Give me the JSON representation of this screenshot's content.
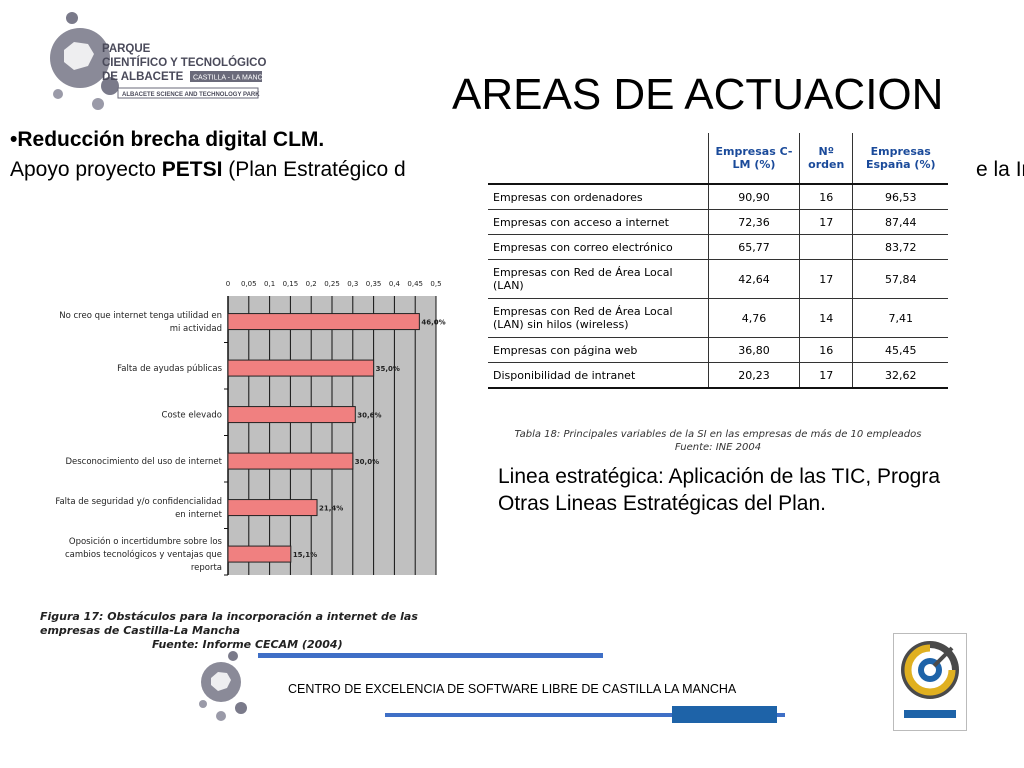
{
  "logo": {
    "line1": "PARQUE",
    "line2": "CIENTÍFICO Y TECNOLÓGICO",
    "line3": "DE ALBACETE",
    "region": "CASTILLA - LA MANCHA",
    "subtitle": "ALBACETE SCIENCE AND TECHNOLOGY PARK"
  },
  "title": "AREAS DE ACTUACION",
  "bullet": "•Reducción brecha digital CLM.",
  "support": {
    "prefix": "Apoyo proyecto ",
    "bold": "PETSI",
    "rest": " (Plan Estratégico d",
    "tail": "e la In"
  },
  "chart_data": {
    "type": "bar",
    "orientation": "horizontal",
    "categories": [
      "No creo que internet tenga utilidad en mi actividad",
      "Falta de ayudas públicas",
      "Coste elevado",
      "Desconocimiento del uso de internet",
      "Falta de seguridad y/o confidencialidad en internet",
      "Oposición o incertidumbre sobre los cambios tecnológicos y ventajas que reporta"
    ],
    "values": [
      0.46,
      0.35,
      0.306,
      0.3,
      0.214,
      0.151
    ],
    "data_labels": [
      "46,0%",
      "35,0%",
      "30,6%",
      "30,0%",
      "21,4%",
      "15,1%"
    ],
    "ticks": [
      "0",
      "0,05",
      "0,1",
      "0,15",
      "0,2",
      "0,25",
      "0,3",
      "0,35",
      "0,4",
      "0,45",
      "0,5"
    ],
    "xlim": [
      0,
      0.5
    ],
    "bar_color": "#f08080",
    "plot_background": "#c0c0c0",
    "grid": true
  },
  "chart_caption": {
    "line1": "Figura 17: Obstáculos para la incorporación a internet de las empresas de Castilla-La Mancha",
    "line2": "Fuente: Informe CECAM (2004)"
  },
  "table": {
    "headers": [
      "",
      "Empresas C-LM (%)",
      "Nº orden",
      "Empresas España (%)"
    ],
    "rows": [
      [
        "Empresas con ordenadores",
        "90,90",
        "16",
        "96,53"
      ],
      [
        "Empresas con acceso a internet",
        "72,36",
        "17",
        "87,44"
      ],
      [
        "Empresas con correo electrónico",
        "65,77",
        "",
        "83,72"
      ],
      [
        "Empresas con Red de Área Local (LAN)",
        "42,64",
        "17",
        "57,84"
      ],
      [
        "Empresas con Red de Área Local (LAN) sin hilos (wireless)",
        "4,76",
        "14",
        "7,41"
      ],
      [
        "Empresas con página web",
        "36,80",
        "16",
        "45,45"
      ],
      [
        "Disponibilidad de intranet",
        "20,23",
        "17",
        "32,62"
      ]
    ],
    "caption_line1": "Tabla 18: Principales variables de la SI en las empresas de más de 10 empleados",
    "caption_line2": "Fuente: INE 2004"
  },
  "linea": {
    "line1": "Linea estratégica: Aplicación de las TIC, Progra",
    "line2": "Otras Lineas Estratégicas del Plan."
  },
  "footer": {
    "text": "CENTRO DE EXCELENCIA DE SOFTWARE LIBRE DE CASTILLA LA MANCHA",
    "accent": "#3f6fc6"
  }
}
